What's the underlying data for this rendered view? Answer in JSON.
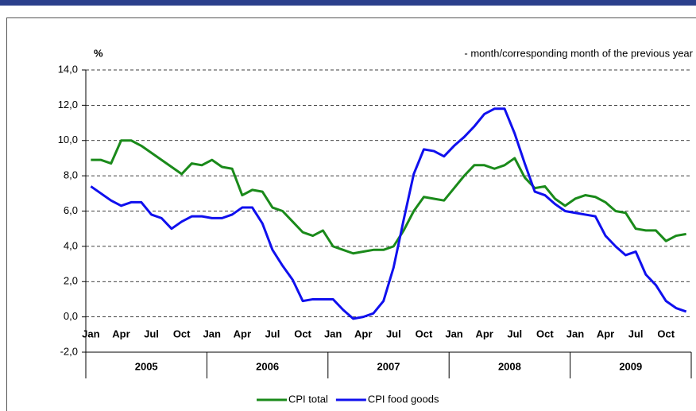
{
  "chart_data": {
    "type": "line",
    "unit_label": "%",
    "subtitle": "- month/corresponding month of the previous year",
    "categories": [
      "Jan",
      null,
      null,
      "Apr",
      null,
      null,
      "Jul",
      null,
      null,
      "Oct",
      null,
      null,
      "Jan",
      null,
      null,
      "Apr",
      null,
      null,
      "Jul",
      null,
      null,
      "Oct",
      null,
      null,
      "Jan",
      null,
      null,
      "Apr",
      null,
      null,
      "Jul",
      null,
      null,
      "Oct",
      null,
      null,
      "Jan",
      null,
      null,
      "Apr",
      null,
      null,
      "Jul",
      null,
      null,
      "Oct",
      null,
      null,
      "Jan",
      null,
      null,
      "Apr",
      null,
      null,
      "Jul",
      null,
      null,
      "Oct",
      null,
      null
    ],
    "year_groups": [
      "2005",
      "2006",
      "2007",
      "2008",
      "2009"
    ],
    "series": [
      {
        "name": "CPI total",
        "color": "#1a8a1a",
        "values": [
          8.9,
          8.9,
          8.7,
          10.0,
          10.0,
          9.7,
          9.3,
          8.9,
          8.5,
          8.1,
          8.7,
          8.6,
          8.9,
          8.5,
          8.4,
          6.9,
          7.2,
          7.1,
          6.2,
          6.0,
          5.4,
          4.8,
          4.6,
          4.9,
          4.0,
          3.8,
          3.6,
          3.7,
          3.8,
          3.8,
          4.0,
          4.9,
          6.0,
          6.8,
          6.7,
          6.6,
          7.3,
          8.0,
          8.6,
          8.6,
          8.4,
          8.6,
          9.0,
          7.9,
          7.3,
          7.4,
          6.7,
          6.3,
          6.7,
          6.9,
          6.8,
          6.5,
          6.0,
          5.9,
          5.0,
          4.9,
          4.9,
          4.3,
          4.6,
          4.7
        ]
      },
      {
        "name": "CPI food goods",
        "color": "#1010ee",
        "values": [
          7.4,
          7.0,
          6.6,
          6.3,
          6.5,
          6.5,
          5.8,
          5.6,
          5.0,
          5.4,
          5.7,
          5.7,
          5.6,
          5.6,
          5.8,
          6.2,
          6.2,
          5.3,
          3.8,
          2.9,
          2.1,
          0.9,
          1.0,
          1.0,
          1.0,
          0.4,
          -0.1,
          0.0,
          0.2,
          0.9,
          2.8,
          5.5,
          8.1,
          9.5,
          9.4,
          9.1,
          9.7,
          10.2,
          10.8,
          11.5,
          11.8,
          11.8,
          10.4,
          8.7,
          7.1,
          6.9,
          6.4,
          6.0,
          5.9,
          5.8,
          5.7,
          4.6,
          4.0,
          3.5,
          3.7,
          2.4,
          1.8,
          0.9,
          0.5,
          0.3
        ]
      }
    ],
    "ylim": [
      -2,
      14
    ],
    "yticks": [
      {
        "value": -2,
        "label": "-2,0"
      },
      {
        "value": 0,
        "label": "0,0"
      },
      {
        "value": 2,
        "label": "2,0"
      },
      {
        "value": 4,
        "label": "4,0"
      },
      {
        "value": 6,
        "label": "6,0"
      },
      {
        "value": 8,
        "label": "8,0"
      },
      {
        "value": 10,
        "label": "10,0"
      },
      {
        "value": 12,
        "label": "12,0"
      },
      {
        "value": 14,
        "label": "14,0"
      }
    ],
    "grid": true,
    "legend": "bottom"
  }
}
